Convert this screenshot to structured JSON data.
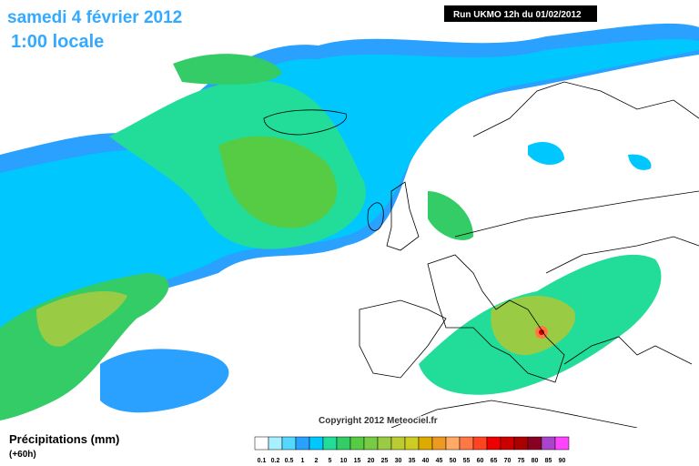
{
  "header": {
    "date": "samedi 4 février 2012",
    "time": "1:00 locale",
    "run": "Run UKMO 12h du 01/02/2012"
  },
  "copyright": "Copyright 2012 Meteociel.fr",
  "footer": {
    "title": "Précipitations (mm)",
    "lead": "(+60h)"
  },
  "legend": {
    "items": [
      {
        "label": "0.1",
        "color": "#ffffff"
      },
      {
        "label": "0.2",
        "color": "#a8f0ff"
      },
      {
        "label": "0.5",
        "color": "#55d8ff"
      },
      {
        "label": "1",
        "color": "#2aa0ff"
      },
      {
        "label": "2",
        "color": "#00c8ff"
      },
      {
        "label": "5",
        "color": "#22dd99"
      },
      {
        "label": "10",
        "color": "#33cc66"
      },
      {
        "label": "15",
        "color": "#55cc44"
      },
      {
        "label": "20",
        "color": "#77cc44"
      },
      {
        "label": "25",
        "color": "#99cc44"
      },
      {
        "label": "30",
        "color": "#bbcc33"
      },
      {
        "label": "35",
        "color": "#cccc22"
      },
      {
        "label": "40",
        "color": "#ddaa00"
      },
      {
        "label": "45",
        "color": "#ee9922"
      },
      {
        "label": "50",
        "color": "#ffaa66"
      },
      {
        "label": "55",
        "color": "#ff7744"
      },
      {
        "label": "60",
        "color": "#ff4422"
      },
      {
        "label": "65",
        "color": "#ee0000"
      },
      {
        "label": "70",
        "color": "#cc0000"
      },
      {
        "label": "75",
        "color": "#aa0000"
      },
      {
        "label": "80",
        "color": "#880022"
      },
      {
        "label": "85",
        "color": "#aa44cc"
      },
      {
        "label": "90",
        "color": "#ff44ff"
      }
    ]
  }
}
